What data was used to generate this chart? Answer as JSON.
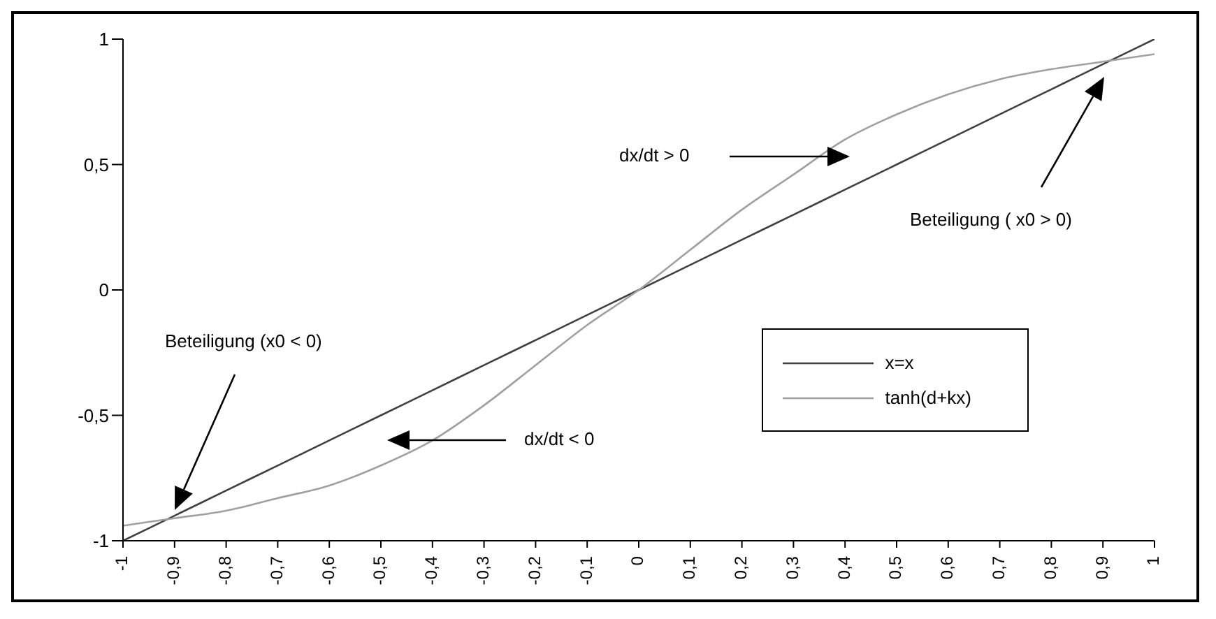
{
  "chart_data": {
    "type": "line",
    "categories": [
      "-1",
      "-0,9",
      "-0,8",
      "-0,7",
      "-0,6",
      "-0,5",
      "-0,4",
      "-0,3",
      "-0,2",
      "-0,1",
      "0",
      "0,1",
      "0,2",
      "0,3",
      "0,4",
      "0,5",
      "0,6",
      "0,7",
      "0,8",
      "0,9",
      "1"
    ],
    "series": [
      {
        "name": "x=x",
        "color": "#404040",
        "values": [
          -1,
          -0.9,
          -0.8,
          -0.7,
          -0.6,
          -0.5,
          -0.4,
          -0.3,
          -0.2,
          -0.1,
          0,
          0.1,
          0.2,
          0.3,
          0.4,
          0.5,
          0.6,
          0.7,
          0.8,
          0.9,
          1
        ]
      },
      {
        "name": "tanh(d+kx)",
        "color": "#a0a0a0",
        "values": [
          -0.94,
          -0.91,
          -0.88,
          -0.83,
          -0.78,
          -0.7,
          -0.6,
          -0.46,
          -0.3,
          -0.14,
          0,
          0.16,
          0.32,
          0.46,
          0.6,
          0.7,
          0.78,
          0.84,
          0.88,
          0.91,
          0.94
        ]
      }
    ],
    "ylim": [
      -1,
      1
    ],
    "yticks": [
      -1,
      {
        "value": -0.5,
        "label": "-0,5"
      },
      0,
      {
        "value": 0.5,
        "label": "0,5"
      },
      1
    ],
    "grid": false,
    "legend": "right",
    "marker": "none",
    "line_style": "solid",
    "annotations": [
      "Beteiligung (x0 < 0)",
      "dx/dt < 0",
      "dx/dt > 0",
      "Beteiligung ( x0 > 0)"
    ]
  }
}
